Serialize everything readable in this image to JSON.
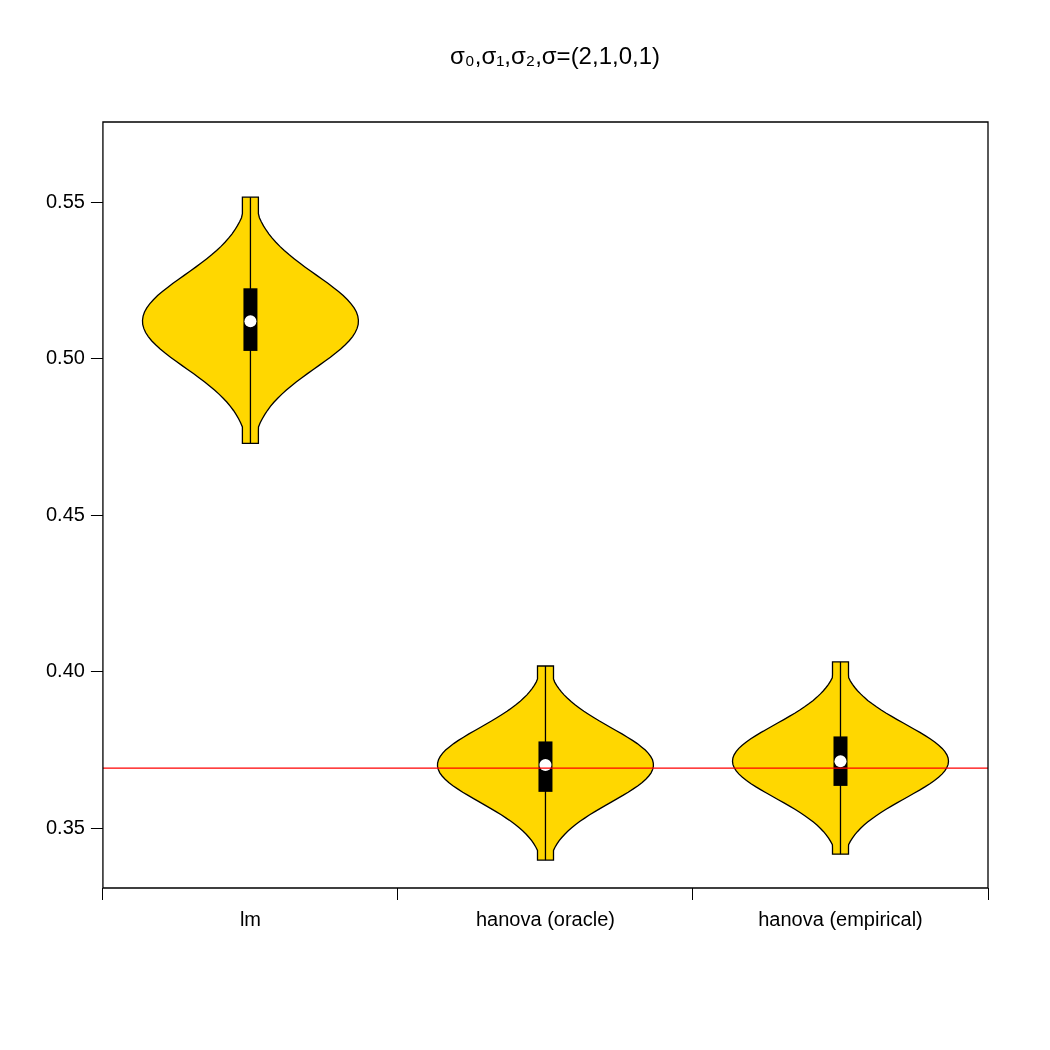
{
  "chart_data": {
    "type": "box",
    "title": "σ₀,σ₁,σ₂,σ=(2,1,0,1)",
    "categories": [
      "lm",
      "hanova (oracle)",
      "hanova (empirical)"
    ],
    "series": [
      {
        "color": "#000000",
        "boxes": [
          {
            "low": 0.473,
            "q1": 0.5025,
            "median": 0.512,
            "q3": 0.5225,
            "high": 0.5516
          },
          {
            "low": 0.3399,
            "q1": 0.3617,
            "median": 0.3703,
            "q3": 0.3778,
            "high": 0.4019
          },
          {
            "low": 0.3418,
            "q1": 0.3636,
            "median": 0.3715,
            "q3": 0.3794,
            "high": 0.4032
          }
        ]
      }
    ],
    "ylim": [
      0.331,
      0.5756
    ],
    "yticks": [
      {
        "value": 0.35,
        "label": "0.35"
      },
      {
        "value": 0.4,
        "label": "0.40"
      },
      {
        "value": 0.45,
        "label": "0.45"
      },
      {
        "value": 0.5,
        "label": "0.50"
      },
      {
        "value": 0.55,
        "label": "0.55"
      }
    ],
    "ref_lines": [
      {
        "axis": "y",
        "value": 0.3693,
        "color": "#ff0000"
      }
    ],
    "grid": false,
    "legend": false
  }
}
